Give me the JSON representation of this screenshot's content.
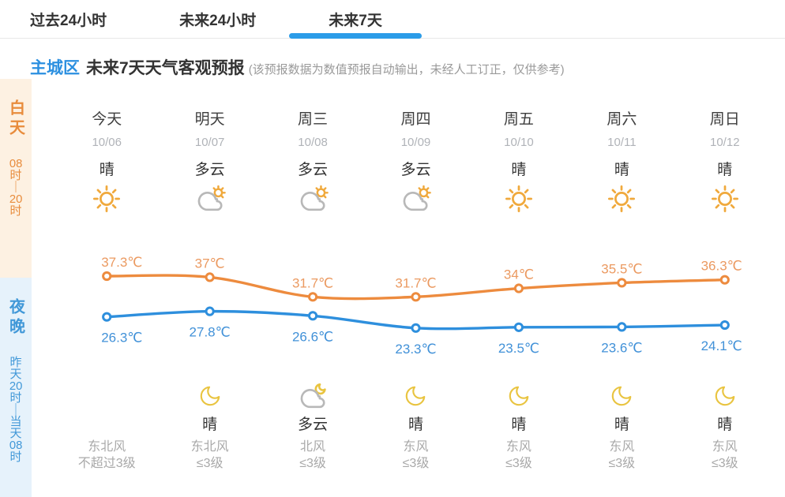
{
  "tabs": [
    {
      "label": "过去24小时",
      "active": false
    },
    {
      "label": "未来24小时",
      "active": false
    },
    {
      "label": "未来7天",
      "active": true
    }
  ],
  "header": {
    "region": "主城区",
    "title": "未来7天天气客观预报",
    "note": "(该预报数据为数值预报自动输出，未经人工订正，仅供参考)"
  },
  "sidebar": {
    "day": {
      "label": "白天",
      "time_parts": [
        "08",
        "时",
        "｜",
        "20",
        "时"
      ]
    },
    "night": {
      "label": "夜晚",
      "time_parts": [
        "昨",
        "天",
        "20",
        "时",
        "｜",
        "当",
        "天",
        "08",
        "时"
      ]
    }
  },
  "days": [
    {
      "name": "今天",
      "date": "10/06",
      "day_weather": "晴",
      "day_icon": "sun-icon",
      "night_icon": null,
      "night_weather": null,
      "wind_dir": "东北风",
      "wind_level": "不超过3级"
    },
    {
      "name": "明天",
      "date": "10/07",
      "day_weather": "多云",
      "day_icon": "cloud-sun-icon",
      "night_icon": "moon-icon",
      "night_weather": "晴",
      "wind_dir": "东北风",
      "wind_level": "≤3级"
    },
    {
      "name": "周三",
      "date": "10/08",
      "day_weather": "多云",
      "day_icon": "cloud-sun-icon",
      "night_icon": "cloud-moon-icon",
      "night_weather": "多云",
      "wind_dir": "北风",
      "wind_level": "≤3级"
    },
    {
      "name": "周四",
      "date": "10/09",
      "day_weather": "多云",
      "day_icon": "cloud-sun-icon",
      "night_icon": "moon-icon",
      "night_weather": "晴",
      "wind_dir": "东风",
      "wind_level": "≤3级"
    },
    {
      "name": "周五",
      "date": "10/10",
      "day_weather": "晴",
      "day_icon": "sun-icon",
      "night_icon": "moon-icon",
      "night_weather": "晴",
      "wind_dir": "东风",
      "wind_level": "≤3级"
    },
    {
      "name": "周六",
      "date": "10/11",
      "day_weather": "晴",
      "day_icon": "sun-icon",
      "night_icon": "moon-icon",
      "night_weather": "晴",
      "wind_dir": "东风",
      "wind_level": "≤3级"
    },
    {
      "name": "周日",
      "date": "10/12",
      "day_weather": "晴",
      "day_icon": "sun-icon",
      "night_icon": "moon-icon",
      "night_weather": "晴",
      "wind_dir": "东风",
      "wind_level": "≤3级"
    }
  ],
  "chart_data": {
    "type": "line",
    "categories": [
      "今天",
      "明天",
      "周三",
      "周四",
      "周五",
      "周六",
      "周日"
    ],
    "x_dates": [
      "10/06",
      "10/07",
      "10/08",
      "10/09",
      "10/10",
      "10/11",
      "10/12"
    ],
    "unit": "℃",
    "grid": false,
    "legend_position": "none",
    "series": [
      {
        "name": "high_temp",
        "color": "#ed8b3e",
        "label_color": "#eb9a61",
        "values": [
          37.3,
          37,
          31.7,
          31.7,
          34,
          35.5,
          36.3
        ],
        "labels": [
          "37.3℃",
          "37℃",
          "31.7℃",
          "31.7℃",
          "34℃",
          "35.5℃",
          "36.3℃"
        ]
      },
      {
        "name": "low_temp",
        "color": "#2e8fdd",
        "label_color": "#4191d8",
        "values": [
          26.3,
          27.8,
          26.6,
          23.3,
          23.5,
          23.6,
          24.1
        ],
        "labels": [
          "26.3℃",
          "27.8℃",
          "26.6℃",
          "23.3℃",
          "23.5℃",
          "23.6℃",
          "24.1℃"
        ]
      }
    ]
  },
  "colors": {
    "accent_blue": "#2b9ce8",
    "region_blue": "#2b8fe0",
    "high_orange": "#ed8b3e",
    "low_blue": "#2e8fdd",
    "sun_amber": "#f0a93c",
    "moon_gold": "#e9c440",
    "cloud_gray": "#b8b8b8"
  }
}
